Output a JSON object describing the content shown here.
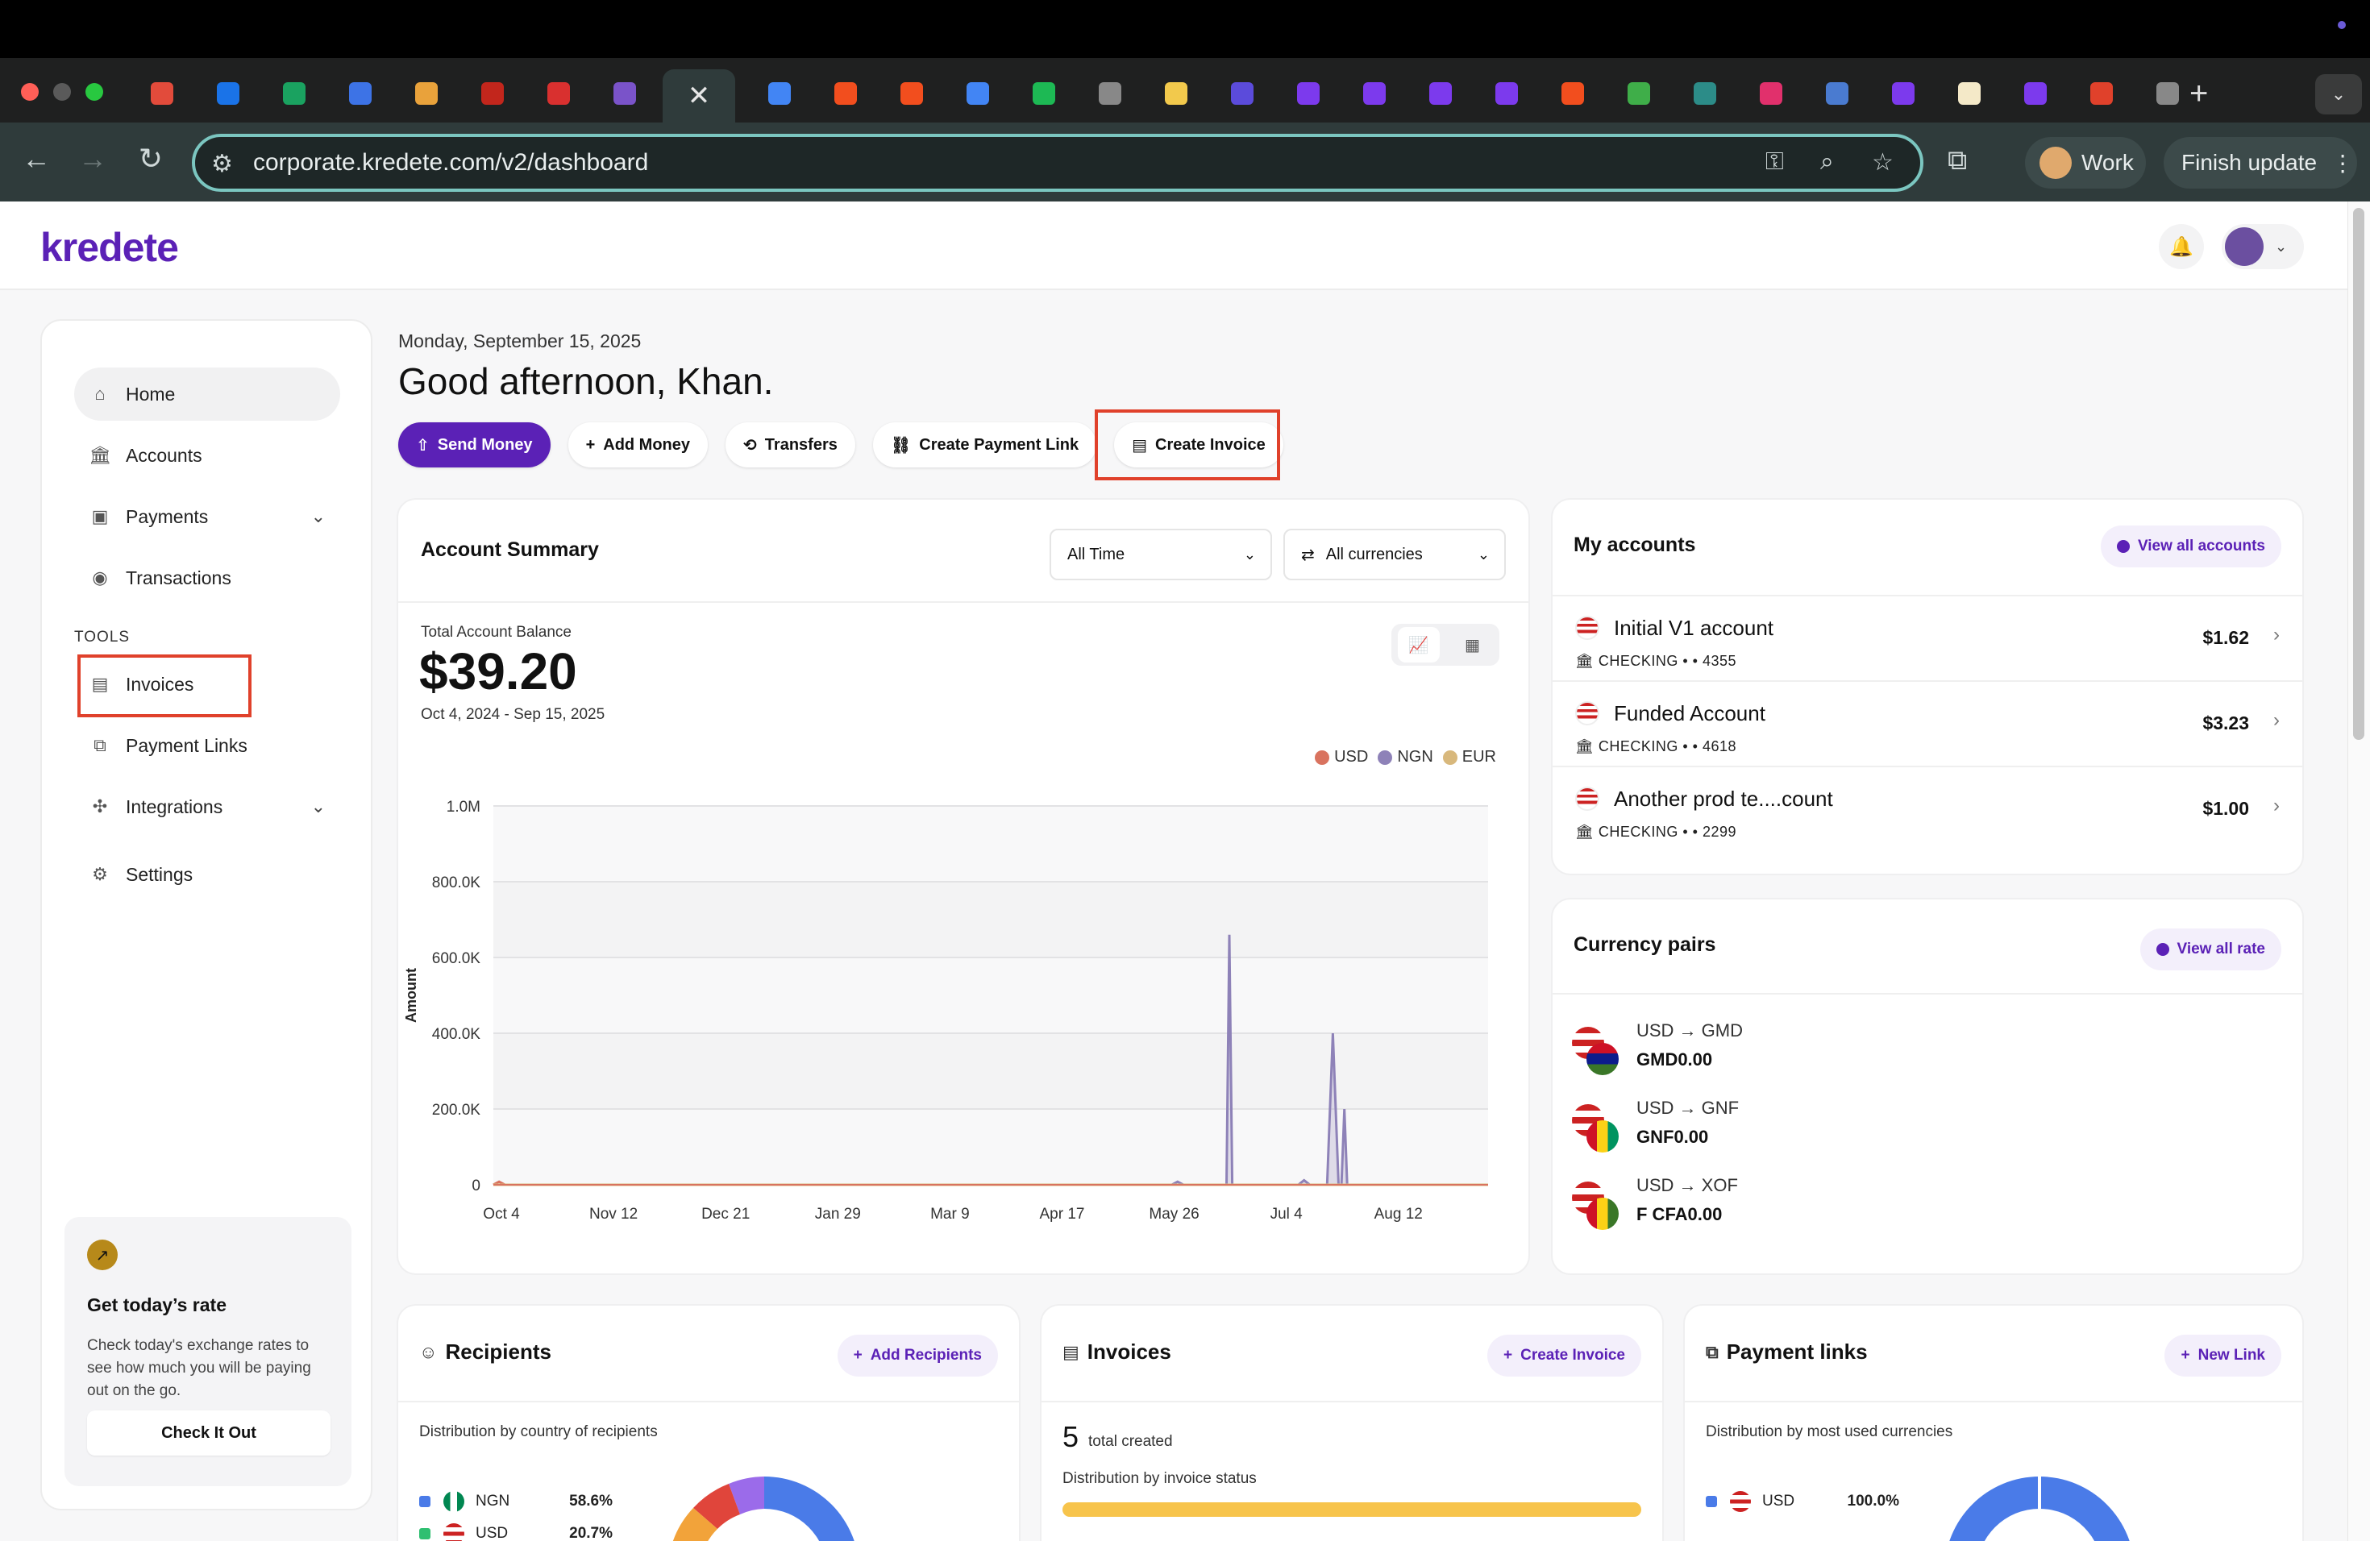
{
  "browser": {
    "url": "corporate.kredete.com/v2/dashboard",
    "profile_label": "Work",
    "update_label": "Finish update",
    "tab_colors": [
      "#e24b3b",
      "#1a73e8",
      "#1aa260",
      "#3d73e6",
      "#e9a23b",
      "#c2261c",
      "#d9302f",
      "#7a53c9",
      "#4285f4",
      "#f24e1e",
      "#f24e1e",
      "#4285f4",
      "#1db954",
      "#888888",
      "#f2c94c",
      "#5b4bdb",
      "#7c3aed",
      "#7c3aed",
      "#7c3aed",
      "#7c3aed",
      "#f24e1e",
      "#3fae49",
      "#2c8c88",
      "#e1306c",
      "#4a7bd0",
      "#7c3aed",
      "#f4e9c8",
      "#7c3aed",
      "#e0412b",
      "#888888"
    ]
  },
  "app": {
    "logo": "kredete",
    "brand_color": "#5b21b6"
  },
  "sidebar": {
    "items": [
      {
        "label": "Home",
        "icon": "home-icon"
      },
      {
        "label": "Accounts",
        "icon": "bank-icon"
      },
      {
        "label": "Payments",
        "icon": "payments-icon"
      },
      {
        "label": "Transactions",
        "icon": "transactions-icon"
      }
    ],
    "tools_label": "TOOLS",
    "tools": [
      {
        "label": "Invoices",
        "icon": "invoice-icon"
      },
      {
        "label": "Payment Links",
        "icon": "link-icon"
      },
      {
        "label": "Integrations",
        "icon": "integrations-icon"
      },
      {
        "label": "Settings",
        "icon": "gear-icon"
      }
    ],
    "rate_card": {
      "title": "Get today’s rate",
      "description": "Check today's exchange rates to see how much you will be paying out on the go.",
      "button": "Check It Out"
    }
  },
  "main": {
    "date": "Monday, September 15, 2025",
    "greeting": "Good afternoon, Khan.",
    "actions": {
      "send_money": "Send Money",
      "add_money": "Add Money",
      "transfers": "Transfers",
      "create_payment_link": "Create Payment Link",
      "create_invoice": "Create Invoice"
    }
  },
  "summary": {
    "title": "Account Summary",
    "period_select": "All Time",
    "currency_select": "All currencies",
    "balance_label": "Total Account Balance",
    "balance": "$39.20",
    "range": "Oct 4, 2024 - Sep 15, 2025"
  },
  "chart_data": {
    "type": "area",
    "ylabel": "Amount",
    "ylim": [
      0,
      1000000
    ],
    "y_ticks": [
      "0",
      "200.0K",
      "400.0K",
      "600.0K",
      "800.0K",
      "1.0M"
    ],
    "y_tick_values": [
      0,
      200000,
      400000,
      600000,
      800000,
      1000000
    ],
    "x_ticks": [
      "Oct 4",
      "Nov 12",
      "Dec 21",
      "Jan 29",
      "Mar 9",
      "Apr 17",
      "May 26",
      "Jul 4",
      "Aug 12"
    ],
    "x_range_days": [
      0,
      346
    ],
    "grid": true,
    "legend": "top-right",
    "series": [
      {
        "name": "USD",
        "color": "#d9735f",
        "points": [
          [
            0,
            0
          ],
          [
            2,
            8000
          ],
          [
            4,
            0
          ],
          [
            346,
            0
          ]
        ]
      },
      {
        "name": "NGN",
        "color": "#8e82b8",
        "points": [
          [
            0,
            0
          ],
          [
            236,
            0
          ],
          [
            238,
            8000
          ],
          [
            240,
            0
          ],
          [
            255,
            0
          ],
          [
            256,
            660000
          ],
          [
            257,
            0
          ],
          [
            280,
            0
          ],
          [
            282,
            12000
          ],
          [
            284,
            0
          ],
          [
            290,
            0
          ],
          [
            292,
            400000
          ],
          [
            294,
            0
          ],
          [
            295,
            0
          ],
          [
            296,
            200000
          ],
          [
            297,
            0
          ],
          [
            346,
            0
          ]
        ]
      },
      {
        "name": "EUR",
        "color": "#d8b87c",
        "points": [
          [
            0,
            0
          ],
          [
            346,
            0
          ]
        ]
      }
    ]
  },
  "accounts": {
    "title": "My accounts",
    "view_all": "View all accounts",
    "items": [
      {
        "name": "Initial V1 account",
        "detail": "CHECKING • • 4355",
        "amount": "$1.62"
      },
      {
        "name": "Funded Account",
        "detail": "CHECKING • • 4618",
        "amount": "$3.23"
      },
      {
        "name": "Another prod te....count",
        "detail": "CHECKING • • 2299",
        "amount": "$1.00"
      }
    ]
  },
  "currency_pairs": {
    "title": "Currency pairs",
    "view_all": "View all rate",
    "items": [
      {
        "pair": "USD → GMD",
        "value": "GMD0.00",
        "flag_colors": [
          "#ce1126",
          "#0c1c8c",
          "#3a7728"
        ]
      },
      {
        "pair": "USD → GNF",
        "value": "GNF0.00",
        "flag_colors": [
          "#ce1126",
          "#fcd116",
          "#009460"
        ]
      },
      {
        "pair": "USD → XOF",
        "value": "F CFA0.00",
        "flag_colors": [
          "#ce1126",
          "#fcd116",
          "#3a7728"
        ]
      }
    ]
  },
  "recipients": {
    "title": "Recipients",
    "add": "Add Recipients",
    "subtitle": "Distribution by country of recipients",
    "rows": [
      {
        "code": "NGN",
        "pct": "58.6%",
        "color": "#4a7be8"
      },
      {
        "code": "USD",
        "pct": "20.7%",
        "color": "#2fbf71"
      }
    ]
  },
  "invoices": {
    "title": "Invoices",
    "create": "Create Invoice",
    "count": "5",
    "count_label": "total created",
    "subtitle": "Distribution by invoice status"
  },
  "payment_links": {
    "title": "Payment links",
    "new": "New Link",
    "subtitle": "Distribution by most used currencies",
    "rows": [
      {
        "code": "USD",
        "pct": "100.0%",
        "color": "#4a7be8"
      }
    ]
  }
}
